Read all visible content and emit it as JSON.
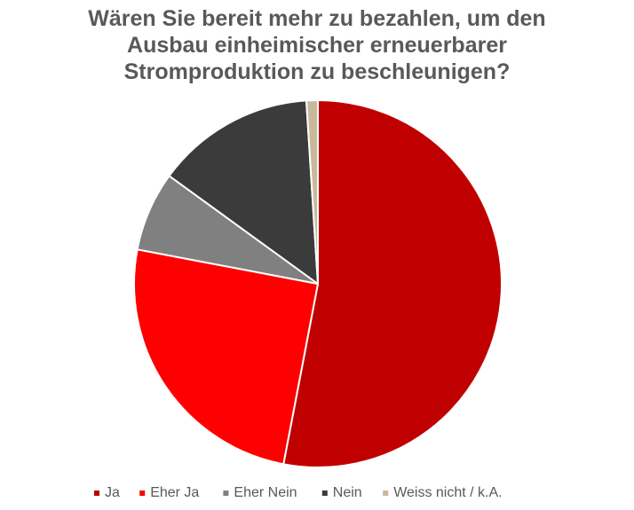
{
  "chart_data": {
    "type": "pie",
    "title": "Wären Sie bereit mehr zu bezahlen, um den Ausbau einheimischer erneuerbarer Stromproduktion zu beschleunigen?",
    "categories": [
      "Ja",
      "Eher Ja",
      "Eher Nein",
      "Nein",
      "Weiss nicht / k.A."
    ],
    "values": [
      53,
      25,
      7,
      14,
      1
    ],
    "colors": [
      "#c00000",
      "#ff0000",
      "#808080",
      "#3b3b3b",
      "#c9b99b"
    ],
    "legend": "bottom"
  }
}
